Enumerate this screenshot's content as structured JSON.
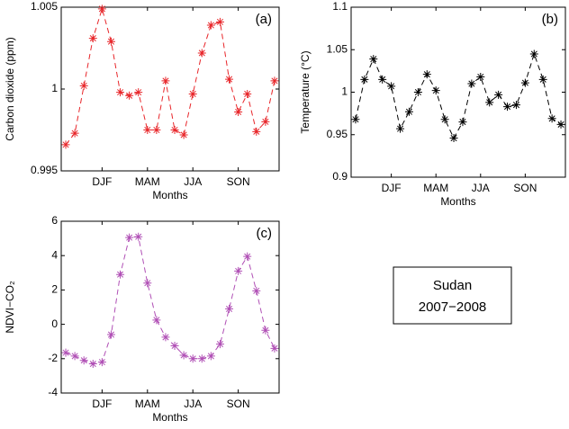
{
  "chart_data": [
    {
      "type": "line",
      "annotation": "(a)",
      "ylabel": "Carbon dioxide (ppm)",
      "xlabel": "Months",
      "color": "#e8262a",
      "marker": "asterisk",
      "dashed": true,
      "x": [
        1,
        2,
        3,
        4,
        5,
        6,
        7,
        8,
        9,
        10,
        11,
        12,
        13,
        14,
        15,
        16,
        17,
        18,
        19,
        20,
        21,
        22,
        23,
        24
      ],
      "values": [
        0.9966,
        0.9973,
        1.0002,
        1.0031,
        1.0049,
        1.0029,
        0.9998,
        0.9996,
        0.9998,
        0.9975,
        0.9975,
        1.0005,
        0.9975,
        0.9972,
        0.9997,
        1.0022,
        1.0039,
        1.0041,
        1.0006,
        0.9986,
        0.9997,
        0.9974,
        0.998,
        1.0005
      ],
      "xlim": [
        0.5,
        24.5
      ],
      "xticks": [
        {
          "value": 5,
          "label": "DJF"
        },
        {
          "value": 10,
          "label": "MAM"
        },
        {
          "value": 15,
          "label": "JJA"
        },
        {
          "value": 20,
          "label": "SON"
        }
      ],
      "ylim": [
        0.995,
        1.005
      ],
      "yticks": [
        0.995,
        1,
        1.005
      ]
    },
    {
      "type": "line",
      "annotation": "(b)",
      "ylabel": "Temperature (°C)",
      "xlabel": "Months",
      "color": "#000000",
      "marker": "asterisk",
      "dashed": true,
      "x": [
        1,
        2,
        3,
        4,
        5,
        6,
        7,
        8,
        9,
        10,
        11,
        12,
        13,
        14,
        15,
        16,
        17,
        18,
        19,
        20,
        21,
        22,
        23,
        24
      ],
      "values": [
        0.968,
        1.015,
        1.039,
        1.015,
        1.007,
        0.957,
        0.977,
        1.0,
        1.021,
        1.002,
        0.968,
        0.946,
        0.965,
        1.01,
        1.018,
        0.988,
        0.997,
        0.983,
        0.985,
        1.011,
        1.045,
        1.015,
        0.969,
        0.962
      ],
      "xlim": [
        0.5,
        24.5
      ],
      "xticks": [
        {
          "value": 5,
          "label": "DJF"
        },
        {
          "value": 10,
          "label": "MAM"
        },
        {
          "value": 15,
          "label": "JJA"
        },
        {
          "value": 20,
          "label": "SON"
        }
      ],
      "ylim": [
        0.9,
        1.1
      ],
      "yticks": [
        0.9,
        0.95,
        1,
        1.05,
        1.1
      ]
    },
    {
      "type": "line",
      "annotation": "(c)",
      "ylabel": "NDVI−CO₂",
      "xlabel": "Months",
      "color": "#b04fb5",
      "marker": "asterisk",
      "dashed": true,
      "x": [
        1,
        2,
        3,
        4,
        5,
        6,
        7,
        8,
        9,
        10,
        11,
        12,
        13,
        14,
        15,
        16,
        17,
        18,
        19,
        20,
        21,
        22,
        23,
        24
      ],
      "values": [
        -1.65,
        -1.85,
        -2.1,
        -2.3,
        -2.2,
        -0.6,
        2.9,
        5.05,
        5.1,
        2.4,
        0.25,
        -0.75,
        -1.25,
        -1.8,
        -2.0,
        -2.0,
        -1.85,
        -1.15,
        0.9,
        3.1,
        3.95,
        1.95,
        -0.35,
        -1.4
      ],
      "xlim": [
        0.5,
        24.5
      ],
      "xticks": [
        {
          "value": 5,
          "label": "DJF"
        },
        {
          "value": 10,
          "label": "MAM"
        },
        {
          "value": 15,
          "label": "JJA"
        },
        {
          "value": 20,
          "label": "SON"
        }
      ],
      "ylim": [
        -4,
        6
      ],
      "yticks": [
        -4,
        -2,
        0,
        2,
        4,
        6
      ]
    }
  ],
  "text_box": {
    "lines": [
      "Sudan",
      "2007−2008"
    ]
  }
}
